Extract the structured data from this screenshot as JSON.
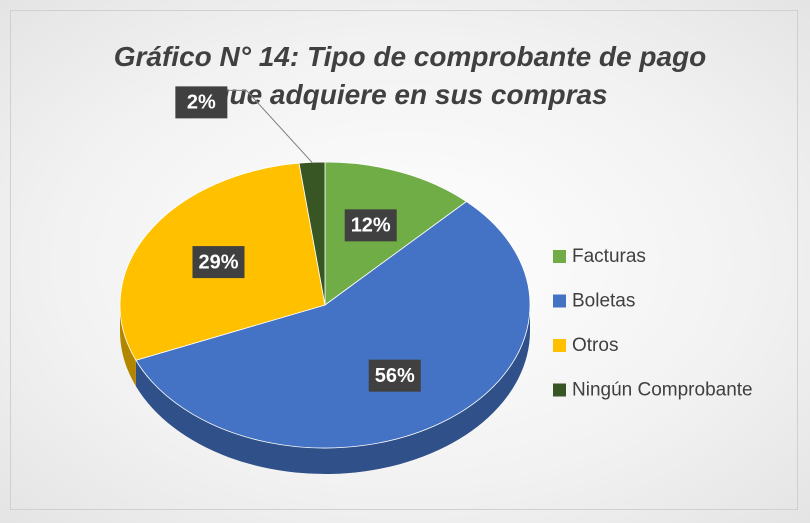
{
  "chart_data": {
    "type": "pie",
    "title": "Gráfico N° 14: Tipo de comprobante de pago que adquiere en sus compras",
    "categories": [
      "Facturas",
      "Boletas",
      "Otros",
      "Ningún Comprobante"
    ],
    "values": [
      12,
      56,
      29,
      2
    ],
    "value_labels": [
      "12%",
      "56%",
      "29%",
      "2%"
    ],
    "colors": [
      "#70ad47",
      "#4472c4",
      "#ffc000",
      "#375623"
    ],
    "legend": "right"
  }
}
